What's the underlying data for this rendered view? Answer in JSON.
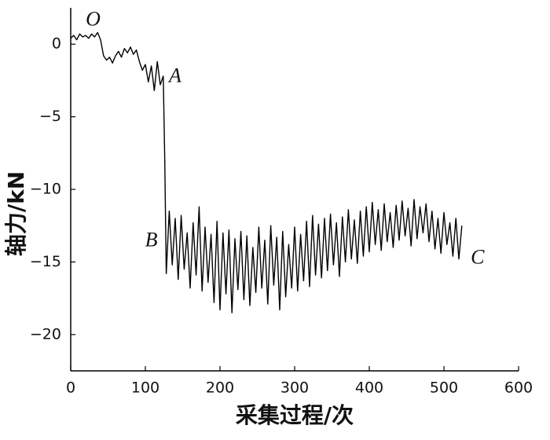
{
  "chart_data": {
    "type": "line",
    "xlabel": "采集过程/次",
    "ylabel": "轴力/kN",
    "xlim": [
      0,
      600
    ],
    "ylim": [
      -22.5,
      2.5
    ],
    "xticks": [
      0,
      100,
      200,
      300,
      400,
      500,
      600
    ],
    "yticks": [
      0,
      {
        "value": -5,
        "label": "−5"
      },
      {
        "value": -10,
        "label": "−10"
      },
      {
        "value": -15,
        "label": "−15"
      },
      {
        "value": -20,
        "label": "−20"
      }
    ],
    "grid": false,
    "annotations": [
      {
        "text": "O",
        "x": 30,
        "y": 1.6
      },
      {
        "text": "A",
        "x": 140,
        "y": -2.3
      },
      {
        "text": "B",
        "x": 108,
        "y": -13.6
      },
      {
        "text": "C",
        "x": 545,
        "y": -14.8
      }
    ],
    "series": [
      {
        "color": "#000000",
        "x": [
          0,
          4,
          8,
          12,
          16,
          20,
          24,
          28,
          32,
          36,
          40,
          44,
          48,
          52,
          56,
          60,
          64,
          68,
          72,
          76,
          80,
          84,
          88,
          92,
          96,
          100,
          104,
          108,
          112,
          116,
          120,
          124,
          126,
          128,
          132,
          136,
          140,
          144,
          148,
          152,
          156,
          160,
          164,
          168,
          172,
          176,
          180,
          184,
          188,
          192,
          196,
          200,
          204,
          208,
          212,
          216,
          220,
          224,
          228,
          232,
          236,
          240,
          244,
          248,
          252,
          256,
          260,
          264,
          268,
          272,
          276,
          280,
          284,
          288,
          292,
          296,
          300,
          304,
          308,
          312,
          316,
          320,
          324,
          328,
          332,
          336,
          340,
          344,
          348,
          352,
          356,
          360,
          364,
          368,
          372,
          376,
          380,
          384,
          388,
          392,
          396,
          400,
          404,
          408,
          412,
          416,
          420,
          424,
          428,
          432,
          436,
          440,
          444,
          448,
          452,
          456,
          460,
          464,
          468,
          472,
          476,
          480,
          484,
          488,
          492,
          496,
          500,
          504,
          508,
          512,
          516,
          520,
          524
        ],
        "values": [
          0.4,
          0.6,
          0.3,
          0.7,
          0.5,
          0.6,
          0.4,
          0.7,
          0.5,
          0.8,
          0.3,
          -0.8,
          -1.1,
          -0.9,
          -1.3,
          -0.8,
          -0.5,
          -0.9,
          -0.3,
          -0.6,
          -0.2,
          -0.7,
          -0.4,
          -1.2,
          -1.8,
          -1.4,
          -2.6,
          -1.5,
          -3.2,
          -1.2,
          -2.8,
          -2.2,
          -8.0,
          -15.8,
          -11.5,
          -15.2,
          -12.0,
          -16.2,
          -11.8,
          -15.5,
          -13.0,
          -16.8,
          -12.3,
          -15.9,
          -11.2,
          -17.0,
          -12.6,
          -16.4,
          -13.1,
          -17.8,
          -12.2,
          -18.3,
          -13.0,
          -17.2,
          -12.8,
          -18.5,
          -13.4,
          -16.9,
          -12.9,
          -17.6,
          -13.2,
          -18.0,
          -14.0,
          -17.1,
          -12.6,
          -16.8,
          -13.5,
          -17.9,
          -12.5,
          -16.6,
          -13.3,
          -18.3,
          -12.9,
          -17.4,
          -13.8,
          -16.8,
          -12.6,
          -17.0,
          -13.1,
          -16.3,
          -12.2,
          -16.7,
          -11.8,
          -15.9,
          -12.4,
          -16.1,
          -12.0,
          -15.6,
          -11.7,
          -15.2,
          -12.3,
          -16.0,
          -11.9,
          -15.0,
          -11.4,
          -14.8,
          -12.1,
          -15.1,
          -11.5,
          -14.6,
          -11.2,
          -14.3,
          -10.9,
          -13.8,
          -11.4,
          -14.2,
          -11.0,
          -13.6,
          -11.6,
          -14.0,
          -11.1,
          -13.5,
          -10.8,
          -13.2,
          -11.3,
          -13.9,
          -10.7,
          -13.4,
          -11.2,
          -13.0,
          -11.0,
          -13.6,
          -11.5,
          -14.1,
          -12.0,
          -14.4,
          -11.6,
          -13.8,
          -12.3,
          -14.6,
          -12.0,
          -14.8,
          -12.5
        ]
      }
    ]
  }
}
